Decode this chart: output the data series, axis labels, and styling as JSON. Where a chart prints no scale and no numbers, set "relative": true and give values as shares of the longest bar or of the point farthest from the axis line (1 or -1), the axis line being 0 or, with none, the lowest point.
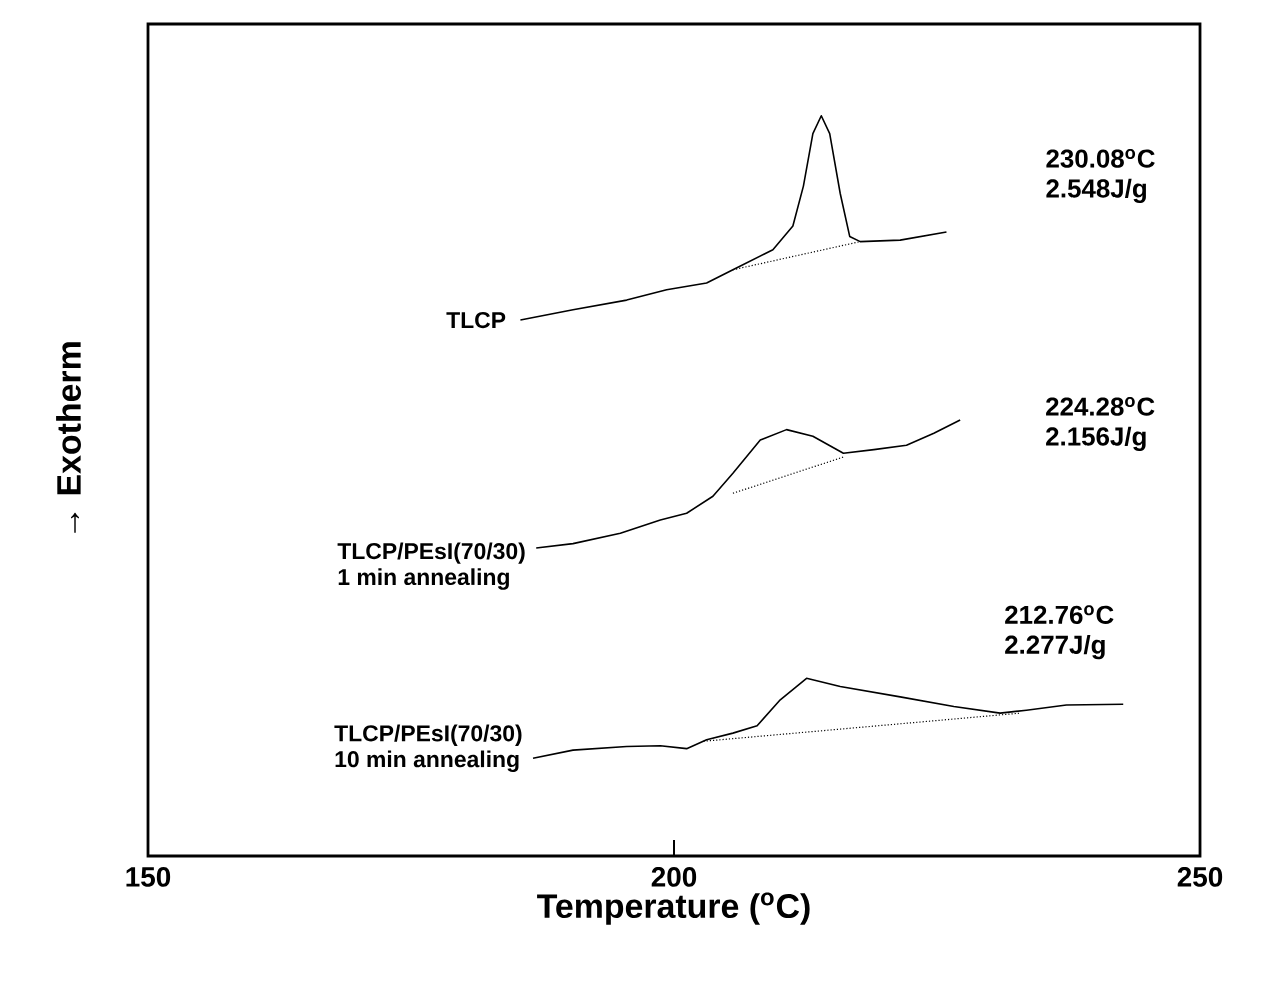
{
  "chart_data": {
    "type": "line",
    "relative": true,
    "xlabel": "Temperature ($^{o}$C)",
    "ylabel": "→  Exotherm",
    "xlim": [
      150,
      250
    ],
    "xticks": [
      150,
      200,
      250
    ],
    "grid": false,
    "tick_labels": "x",
    "marker": "none",
    "line_style": "solid",
    "annotations": [
      "230.08$^{o}$C",
      "2.548J/g",
      "224.28$^{o}$C",
      "2.156J/g",
      "212.76$^{o}$C",
      "2.277J/g"
    ],
    "series": [
      {
        "name": "TLCP",
        "color": "#000000",
        "x": [
          185.4,
          190.4,
          195.5,
          199.3,
          203.1,
          205.6,
          209.4,
          211.3,
          212.3,
          213.2,
          214.0,
          214.8,
          215.8,
          216.7,
          217.7,
          221.5,
          225.9
        ],
        "values": [
          0.724,
          0.738,
          0.751,
          0.765,
          0.774,
          0.792,
          0.819,
          0.851,
          0.905,
          0.976,
          1.0,
          0.976,
          0.895,
          0.837,
          0.83,
          0.832,
          0.843
        ]
      },
      {
        "name": "TLCP/PEsI(70/30) 1 min annealing",
        "color": "#000000",
        "x": [
          186.9,
          190.4,
          194.9,
          198.7,
          201.2,
          203.7,
          205.6,
          208.2,
          210.7,
          213.2,
          216.1,
          219.0,
          222.1,
          224.7,
          227.2
        ],
        "values": [
          0.416,
          0.422,
          0.436,
          0.454,
          0.463,
          0.486,
          0.517,
          0.562,
          0.576,
          0.567,
          0.544,
          0.549,
          0.555,
          0.571,
          0.589
        ]
      },
      {
        "name": "TLCP/PEsI(70/30) 10 min annealing",
        "color": "#000000",
        "x": [
          186.6,
          190.4,
          195.5,
          198.7,
          201.2,
          203.1,
          205.6,
          207.9,
          210.1,
          212.6,
          215.8,
          221.5,
          226.6,
          231.0,
          233.5,
          237.3,
          242.7
        ],
        "values": [
          0.132,
          0.143,
          0.148,
          0.149,
          0.145,
          0.157,
          0.166,
          0.176,
          0.211,
          0.24,
          0.229,
          0.215,
          0.202,
          0.193,
          0.197,
          0.204,
          0.205
        ]
      },
      {
        "color": "#000000",
        "line_style": "dotted",
        "x": [
          205.6,
          217.7
        ],
        "values": [
          0.792,
          0.83
        ]
      },
      {
        "color": "#000000",
        "line_style": "dotted",
        "x": [
          205.6,
          216.1
        ],
        "values": [
          0.49,
          0.539
        ]
      },
      {
        "color": "#000000",
        "line_style": "dotted",
        "x": [
          202.8,
          232.9
        ],
        "values": [
          0.155,
          0.193
        ]
      }
    ]
  }
}
